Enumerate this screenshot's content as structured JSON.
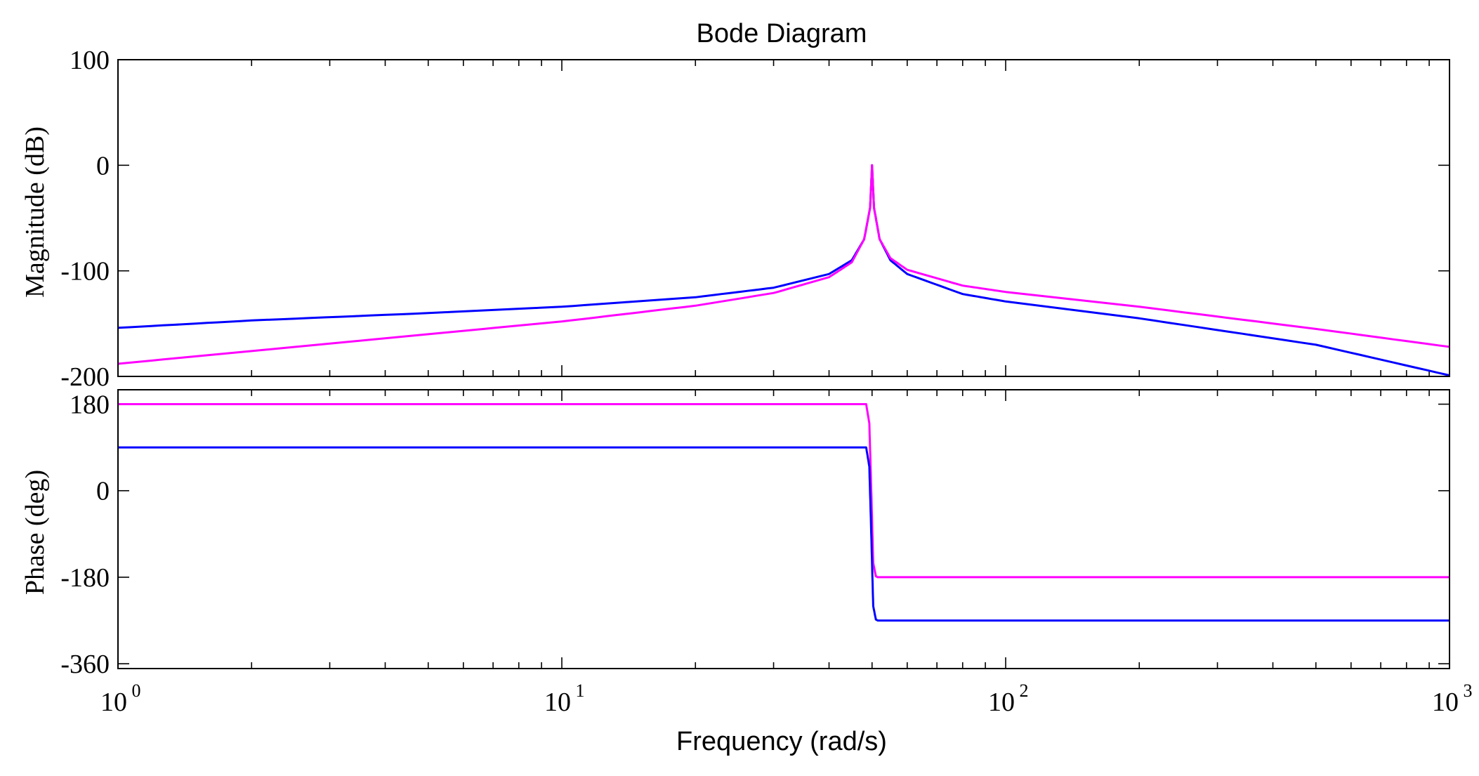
{
  "chart_data": [
    {
      "type": "line",
      "title": "Bode Diagram",
      "xlabel": "Frequency  (rad/s)",
      "ylabel": "Magnitude (dB)",
      "xscale": "log",
      "xlim": [
        1,
        1000
      ],
      "ylim": [
        -200,
        100
      ],
      "yticks": [
        "100",
        "0",
        "-100",
        "-200"
      ],
      "ytick_values": [
        100,
        0,
        -100,
        -200
      ],
      "grid": false,
      "series": [
        {
          "color": "#0000ff",
          "x": [
            1,
            2,
            5,
            10,
            20,
            30,
            40,
            45,
            48,
            49.5,
            50,
            50.5,
            52,
            55,
            60,
            80,
            100,
            200,
            500,
            1000
          ],
          "y": [
            -154,
            -147,
            -140,
            -134,
            -125,
            -116,
            -103,
            -90,
            -70,
            -40,
            0,
            -40,
            -70,
            -90,
            -103,
            -122,
            -129,
            -145,
            -170,
            -199
          ]
        },
        {
          "color": "#ff00ff",
          "x": [
            1,
            2,
            5,
            10,
            20,
            30,
            40,
            45,
            48,
            49.5,
            50,
            50.5,
            52,
            55,
            60,
            80,
            100,
            200,
            500,
            1000
          ],
          "y": [
            -188,
            -176,
            -160,
            -148,
            -133,
            -121,
            -106,
            -92,
            -70,
            -40,
            0,
            -40,
            -70,
            -88,
            -99,
            -114,
            -120,
            -134,
            -155,
            -172
          ]
        }
      ]
    },
    {
      "type": "line",
      "xlabel": "Frequency  (rad/s)",
      "ylabel": "Phase (deg)",
      "xscale": "log",
      "xlim": [
        1,
        1000
      ],
      "ylim": [
        -370,
        210
      ],
      "yticks": [
        "180",
        "0",
        "-180",
        "-360"
      ],
      "ytick_values": [
        180,
        0,
        -180,
        -360
      ],
      "xticks": [
        {
          "base": "10",
          "exp": "0",
          "value": 1
        },
        {
          "base": "10",
          "exp": "1",
          "value": 10
        },
        {
          "base": "10",
          "exp": "2",
          "value": 100
        },
        {
          "base": "10",
          "exp": "3",
          "value": 1000
        }
      ],
      "grid": false,
      "series": [
        {
          "color": "#ff00ff",
          "x": [
            1,
            48.5,
            49.3,
            49.8,
            50.3,
            51,
            51.5,
            1000
          ],
          "y": [
            180,
            180,
            140,
            0,
            -150,
            -178,
            -180,
            -180
          ]
        },
        {
          "color": "#0000ff",
          "x": [
            1,
            48.5,
            49.3,
            49.8,
            50.3,
            51,
            51.5,
            1000
          ],
          "y": [
            90,
            90,
            50,
            -90,
            -240,
            -268,
            -270,
            -270
          ]
        }
      ]
    }
  ]
}
